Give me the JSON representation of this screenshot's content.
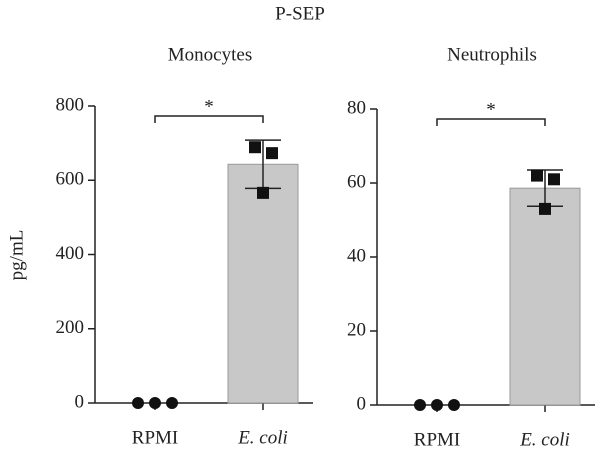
{
  "title": "P-SEP",
  "ylabel": "pg/mL",
  "chart_data": [
    {
      "type": "bar",
      "title": "Monocytes",
      "categories": [
        "RPMI",
        "E. coli"
      ],
      "values": [
        0,
        643
      ],
      "errors": [
        null,
        65
      ],
      "points": [
        [
          0,
          0,
          0
        ],
        [
          689,
          673,
          566
        ]
      ],
      "annotation": "*",
      "color": "#c8c8c8",
      "ylim": [
        0,
        800
      ],
      "yticks": [
        0,
        200,
        400,
        600,
        800
      ]
    },
    {
      "type": "bar",
      "title": "Neutrophils",
      "categories": [
        "RPMI",
        "E. coli"
      ],
      "values": [
        0,
        58.6
      ],
      "errors": [
        null,
        4.9
      ],
      "points": [
        [
          0,
          0,
          0
        ],
        [
          62,
          61,
          53
        ]
      ],
      "annotation": "*",
      "color": "#c8c8c8",
      "ylim": [
        0,
        80
      ],
      "yticks": [
        0,
        20,
        40,
        60,
        80
      ]
    }
  ]
}
